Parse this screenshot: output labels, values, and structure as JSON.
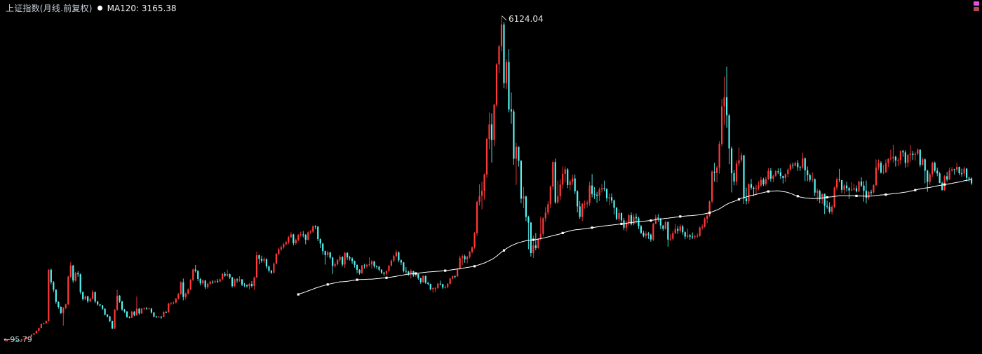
{
  "window": {
    "title": "上证指数(月线.前复权)",
    "ma_label": "MA120: 3165.38"
  },
  "annotations": {
    "peak_label": "6124.04",
    "low_label": "←95.79"
  },
  "colors": {
    "background": "#000000",
    "up": "#ff3a3a",
    "down": "#55f2f2",
    "ma": "#ffffff"
  },
  "corner_icons": [
    {
      "name": "magenta-marker-icon",
      "color": "#e24fe2"
    },
    {
      "name": "maroon-marker-icon",
      "color": "#b04a52"
    }
  ],
  "chart_data": {
    "type": "candlestick",
    "series": "上证指数(月线.前复权)",
    "overlay": {
      "name": "MA120",
      "period": 120,
      "last_value": 3165.38
    },
    "first_open": 96,
    "ylim": [
      95.79,
      6124.04
    ],
    "close": [
      127,
      135,
      133,
      121,
      114,
      112,
      137,
      143,
      178,
      180,
      220,
      247,
      292,
      342,
      420,
      430,
      472,
      1421,
      1191,
      1052,
      824,
      732,
      620,
      715,
      780,
      1291,
      1499,
      1221,
      1358,
      1337,
      1007,
      876,
      928,
      837,
      886,
      1006,
      833,
      779,
      762,
      700,
      592,
      556,
      470,
      333,
      681,
      941,
      836,
      685,
      647,
      547,
      535,
      645,
      579,
      700,
      611,
      702,
      712,
      700,
      704,
      630,
      555,
      550,
      553,
      552,
      640,
      636,
      795,
      800,
      815,
      886,
      971,
      1189,
      917,
      981,
      1058,
      1233,
      1425,
      1398,
      1250,
      1170,
      1221,
      1098,
      1161,
      1201,
      1194,
      1207,
      1206,
      1243,
      1343,
      1311,
      1339,
      1280,
      1118,
      1243,
      1225,
      1241,
      1147,
      1135,
      1116,
      1158,
      1120,
      1279,
      1689,
      1622,
      1588,
      1618,
      1480,
      1403,
      1367,
      1535,
      1714,
      1800,
      1836,
      1894,
      1928,
      2023,
      2074,
      1911,
      1972,
      2062,
      2073,
      2066,
      1975,
      2112,
      2127,
      2222,
      2218,
      1988,
      1905,
      1765,
      1690,
      1742,
      1646,
      1492,
      1522,
      1603,
      1657,
      1516,
      1733,
      1650,
      1630,
      1582,
      1508,
      1420,
      1358,
      1499,
      1485,
      1510,
      1521,
      1576,
      1486,
      1477,
      1422,
      1367,
      1348,
      1397,
      1497,
      1590,
      1675,
      1742,
      1596,
      1555,
      1399,
      1387,
      1342,
      1396,
      1320,
      1340,
      1266,
      1191,
      1306,
      1181,
      1159,
      1060,
      1080,
      1083,
      1162,
      1155,
      1092,
      1099,
      1161,
      1258,
      1299,
      1298,
      1440,
      1641,
      1672,
      1612,
      1658,
      1752,
      1837,
      2099,
      2675,
      2786,
      2881,
      3183,
      3841,
      4109,
      3820,
      4471,
      5218,
      5552,
      5955,
      4872,
      5262,
      4384,
      4348,
      3473,
      3693,
      3433,
      2736,
      2776,
      2397,
      2294,
      1729,
      1871,
      1821,
      1991,
      2083,
      2373,
      2478,
      2633,
      2959,
      3412,
      2668,
      2779,
      2995,
      3195,
      3277,
      2989,
      3052,
      3109,
      2871,
      2592,
      2398,
      2638,
      2639,
      2656,
      2979,
      2820,
      2808,
      2790,
      2905,
      2928,
      2911,
      2743,
      2762,
      2701,
      2567,
      2359,
      2468,
      2333,
      2199,
      2293,
      2428,
      2263,
      2396,
      2372,
      2225,
      2103,
      2047,
      2086,
      2068,
      1980,
      2269,
      2385,
      2365,
      2237,
      2177,
      2301,
      1979,
      1994,
      2098,
      2175,
      2141,
      2220,
      2116,
      2033,
      2056,
      2033,
      2026,
      2039,
      2048,
      2202,
      2217,
      2364,
      2420,
      2683,
      3235,
      3210,
      3310,
      3748,
      4442,
      4612,
      4277,
      3664,
      3206,
      3053,
      3383,
      3445,
      3539,
      2738,
      2688,
      3004,
      2938,
      2917,
      2930,
      2979,
      3085,
      3005,
      3100,
      3250,
      3104,
      3159,
      3242,
      3223,
      3155,
      3117,
      3192,
      3273,
      3361,
      3349,
      3393,
      3317,
      3307,
      3481,
      3259,
      3169,
      3082,
      3095,
      2847,
      2876,
      2725,
      2821,
      2603,
      2588,
      2494,
      2585,
      2941,
      3091,
      3078,
      2899,
      2979,
      2933,
      2886,
      2905,
      2929,
      2872,
      3050,
      2977,
      2880,
      2750,
      2860,
      2852,
      2985,
      3310,
      3396,
      3218,
      3225,
      3392,
      3473,
      3483,
      3509,
      3442,
      3447,
      3615,
      3591,
      3397,
      3544,
      3568,
      3547,
      3564,
      3640,
      3361,
      3462,
      3252,
      3047,
      3186,
      3399,
      3253,
      3202,
      3024,
      2893,
      3151,
      3089,
      3256,
      3280,
      3273,
      3323,
      3205,
      3202,
      3291,
      3120,
      3110,
      3019
    ],
    "high": [
      127,
      137,
      139,
      134,
      122,
      116,
      139,
      147,
      181,
      192,
      224,
      252,
      297,
      349,
      428,
      439,
      482,
      1429,
      1440,
      1210,
      1060,
      840,
      745,
      730,
      795,
      1310,
      1558,
      1510,
      1380,
      1392,
      1350,
      1020,
      945,
      940,
      905,
      1045,
      1020,
      845,
      790,
      770,
      710,
      600,
      565,
      478,
      695,
      1052,
      950,
      845,
      695,
      655,
      560,
      660,
      655,
      926,
      715,
      715,
      725,
      730,
      720,
      710,
      640,
      565,
      565,
      562,
      650,
      655,
      810,
      820,
      830,
      900,
      990,
      1210,
      1258,
      1000,
      1075,
      1250,
      1445,
      1510,
      1410,
      1265,
      1240,
      1230,
      1180,
      1220,
      1230,
      1230,
      1250,
      1260,
      1360,
      1380,
      1423,
      1350,
      1290,
      1260,
      1265,
      1300,
      1250,
      1175,
      1150,
      1175,
      1210,
      1295,
      1756,
      1700,
      1680,
      1650,
      1630,
      1500,
      1420,
      1555,
      1730,
      1830,
      1870,
      1920,
      1955,
      2045,
      2115,
      2085,
      2000,
      2080,
      2125,
      2135,
      2080,
      2130,
      2155,
      2245,
      2245,
      2230,
      2000,
      1915,
      1775,
      1775,
      1750,
      1660,
      1560,
      1620,
      1690,
      1670,
      1748,
      1745,
      1680,
      1650,
      1590,
      1520,
      1430,
      1510,
      1530,
      1530,
      1650,
      1600,
      1585,
      1500,
      1490,
      1430,
      1380,
      1410,
      1510,
      1610,
      1695,
      1783,
      1760,
      1610,
      1565,
      1470,
      1400,
      1430,
      1400,
      1380,
      1350,
      1270,
      1320,
      1315,
      1195,
      1165,
      1095,
      1100,
      1180,
      1220,
      1160,
      1130,
      1170,
      1275,
      1315,
      1320,
      1455,
      1680,
      1700,
      1700,
      1680,
      1770,
      1850,
      2120,
      2700,
      3000,
      3050,
      3200,
      3860,
      4330,
      4312,
      4490,
      5240,
      5580,
      6124,
      6005,
      5320,
      5500,
      4700,
      4390,
      3770,
      3700,
      3450,
      2950,
      2790,
      2420,
      2300,
      2050,
      2100,
      2010,
      2400,
      2390,
      2580,
      2690,
      2980,
      3440,
      3478,
      3070,
      3090,
      3330,
      3330,
      3300,
      3090,
      3180,
      3180,
      2890,
      2690,
      2660,
      2700,
      2700,
      3050,
      3190,
      2950,
      2860,
      2940,
      3010,
      3070,
      2930,
      2830,
      2830,
      2720,
      2580,
      2540,
      2480,
      2380,
      2330,
      2450,
      2480,
      2450,
      2460,
      2400,
      2250,
      2140,
      2130,
      2120,
      2090,
      2290,
      2440,
      2450,
      2380,
      2250,
      2330,
      2320,
      2080,
      2140,
      2270,
      2230,
      2260,
      2250,
      2130,
      2180,
      2080,
      2110,
      2070,
      2090,
      2220,
      2260,
      2390,
      2460,
      2700,
      3260,
      3400,
      3340,
      3800,
      4580,
      4990,
      5178,
      4300,
      3700,
      3260,
      3440,
      3680,
      3590,
      3540,
      2940,
      3020,
      3100,
      2960,
      2990,
      3060,
      3140,
      3120,
      3140,
      3300,
      3300,
      3180,
      3260,
      3295,
      3300,
      3160,
      3200,
      3295,
      3390,
      3400,
      3420,
      3450,
      3340,
      3587,
      3495,
      3330,
      3200,
      3220,
      3110,
      2920,
      2900,
      2830,
      2830,
      2700,
      2670,
      2620,
      2960,
      3130,
      3288,
      3080,
      3010,
      3050,
      2950,
      3040,
      3010,
      2980,
      3070,
      3130,
      3060,
      3070,
      2880,
      2900,
      3000,
      3460,
      3460,
      3430,
      3360,
      3460,
      3480,
      3640,
      3730,
      3530,
      3490,
      3630,
      3640,
      3630,
      3560,
      3730,
      3620,
      3600,
      3670,
      3650,
      3500,
      3480,
      3270,
      3220,
      3420,
      3420,
      3310,
      3230,
      3050,
      3170,
      3230,
      3310,
      3320,
      3290,
      3400,
      3330,
      3290,
      3330,
      3300,
      3140,
      3130
    ],
    "low": [
      96,
      124,
      129,
      117,
      110,
      104,
      108,
      133,
      139,
      172,
      175,
      214,
      240,
      285,
      335,
      410,
      420,
      460,
      1150,
      1010,
      790,
      700,
      600,
      386,
      690,
      770,
      1270,
      1180,
      1200,
      1290,
      970,
      850,
      860,
      810,
      820,
      870,
      805,
      755,
      740,
      680,
      575,
      540,
      455,
      325,
      330,
      660,
      810,
      660,
      625,
      530,
      520,
      525,
      560,
      570,
      590,
      605,
      680,
      680,
      685,
      610,
      540,
      535,
      540,
      512,
      545,
      620,
      625,
      770,
      780,
      795,
      870,
      960,
      855,
      870,
      960,
      1040,
      1210,
      1370,
      1210,
      1130,
      1140,
      1060,
      1070,
      1130,
      1160,
      1170,
      1180,
      1190,
      1230,
      1290,
      1290,
      1250,
      1090,
      1100,
      1180,
      1200,
      1120,
      1100,
      1090,
      1060,
      1090,
      1045,
      1270,
      1520,
      1550,
      1550,
      1440,
      1370,
      1340,
      1350,
      1520,
      1690,
      1770,
      1810,
      1870,
      1900,
      2010,
      1870,
      1880,
      1950,
      2030,
      2020,
      1890,
      1960,
      2080,
      2100,
      2170,
      1950,
      1820,
      1700,
      1515,
      1650,
      1610,
      1339,
      1460,
      1500,
      1560,
      1480,
      1455,
      1600,
      1590,
      1530,
      1460,
      1360,
      1330,
      1340,
      1440,
      1450,
      1480,
      1440,
      1450,
      1440,
      1390,
      1340,
      1307,
      1320,
      1370,
      1480,
      1560,
      1650,
      1560,
      1510,
      1370,
      1350,
      1310,
      1260,
      1290,
      1290,
      1235,
      1160,
      1180,
      1160,
      1130,
      1040,
      998,
      1004,
      1060,
      1130,
      1067,
      1074,
      1080,
      1150,
      1240,
      1260,
      1290,
      1420,
      1510,
      1550,
      1540,
      1630,
      1720,
      1810,
      2050,
      2610,
      2540,
      2720,
      3120,
      3650,
      3404,
      3710,
      4430,
      5060,
      5460,
      4778,
      4760,
      4330,
      4120,
      3360,
      2990,
      3330,
      2650,
      2560,
      2320,
      1800,
      1665,
      1640,
      1780,
      1810,
      1960,
      2040,
      2310,
      2430,
      2560,
      2900,
      2640,
      2640,
      2710,
      2920,
      3040,
      2930,
      2890,
      2990,
      2820,
      2480,
      2360,
      2320,
      2550,
      2570,
      2600,
      2760,
      2730,
      2660,
      2690,
      2850,
      2870,
      2680,
      2610,
      2650,
      2440,
      2340,
      2310,
      2300,
      2150,
      2130,
      2240,
      2240,
      2240,
      2280,
      2170,
      2080,
      2020,
      1999,
      1990,
      1940,
      1949,
      2260,
      2310,
      2170,
      2140,
      2160,
      1849,
      1950,
      1960,
      2080,
      2080,
      2100,
      2070,
      1985,
      2000,
      1975,
      1990,
      1990,
      2010,
      2030,
      2160,
      2200,
      2280,
      2400,
      2650,
      3050,
      3040,
      3200,
      3700,
      4100,
      4050,
      3373,
      2851,
      2983,
      2980,
      3330,
      3410,
      2638,
      2630,
      2640,
      2900,
      2780,
      2800,
      2890,
      2950,
      2970,
      2970,
      3080,
      3050,
      3040,
      3140,
      3190,
      3100,
      3015,
      3040,
      3130,
      3250,
      3290,
      3330,
      3250,
      3250,
      3290,
      3060,
      3060,
      3040,
      3040,
      2780,
      2690,
      2650,
      2640,
      2450,
      2550,
      2460,
      2440,
      2560,
      2890,
      3040,
      2840,
      2820,
      2870,
      2730,
      2880,
      2880,
      2850,
      2857,
      2950,
      2680,
      2646,
      2720,
      2800,
      2830,
      2970,
      3260,
      3200,
      3190,
      3210,
      3320,
      3440,
      3400,
      3330,
      3340,
      3370,
      3510,
      3310,
      3320,
      3420,
      3450,
      3440,
      3540,
      3320,
      3340,
      3020,
      2863,
      2990,
      3140,
      3220,
      3150,
      3020,
      2885,
      2880,
      3050,
      3080,
      3230,
      3180,
      3230,
      3170,
      3140,
      3150,
      3050,
      3050,
      2990
    ]
  }
}
